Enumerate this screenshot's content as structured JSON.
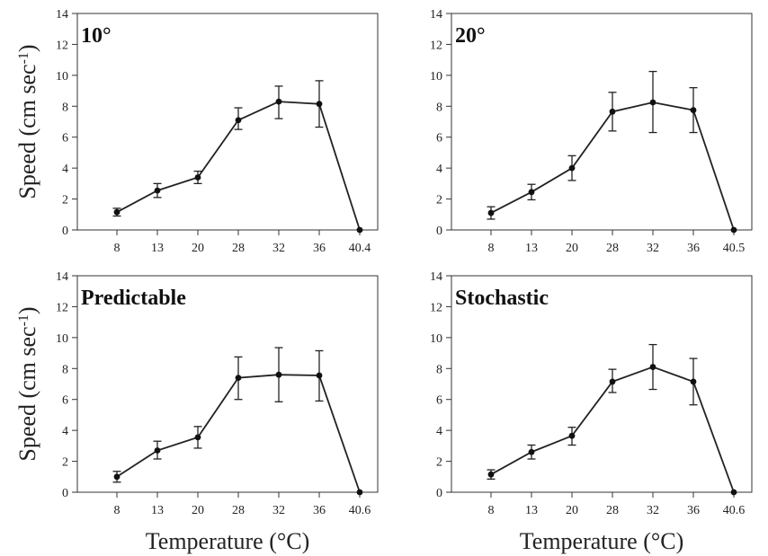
{
  "chart_data": [
    {
      "type": "line",
      "title": "10°",
      "xlabel": "",
      "ylabel": "Speed (cm sec",
      "ylabel_sup": "-1",
      "ylabel_close": ")",
      "categories": [
        "8",
        "13",
        "20",
        "28",
        "32",
        "36",
        "40.4"
      ],
      "values": [
        1.15,
        2.55,
        3.4,
        7.1,
        8.3,
        8.15,
        0
      ],
      "err_low": [
        0.9,
        2.1,
        3.0,
        6.5,
        7.2,
        6.65,
        0
      ],
      "err_high": [
        1.4,
        3.0,
        3.8,
        7.9,
        9.3,
        9.65,
        0
      ],
      "ylim": [
        0,
        14
      ],
      "yticks": [
        0,
        2,
        4,
        6,
        8,
        10,
        12,
        14
      ]
    },
    {
      "type": "line",
      "title": "20°",
      "xlabel": "",
      "ylabel": "",
      "categories": [
        "8",
        "13",
        "20",
        "28",
        "32",
        "36",
        "40.5"
      ],
      "values": [
        1.1,
        2.45,
        4.0,
        7.65,
        8.25,
        7.75,
        0
      ],
      "err_low": [
        0.7,
        1.95,
        3.2,
        6.4,
        6.3,
        6.3,
        0
      ],
      "err_high": [
        1.5,
        2.95,
        4.8,
        8.9,
        10.25,
        9.2,
        0
      ],
      "ylim": [
        0,
        14
      ],
      "yticks": [
        0,
        2,
        4,
        6,
        8,
        10,
        12,
        14
      ]
    },
    {
      "type": "line",
      "title": "Predictable",
      "xlabel": "Temperature (°C)",
      "ylabel": "Speed (cm sec",
      "ylabel_sup": "-1",
      "ylabel_close": ")",
      "categories": [
        "8",
        "13",
        "20",
        "28",
        "32",
        "36",
        "40.6"
      ],
      "values": [
        1.0,
        2.7,
        3.55,
        7.4,
        7.6,
        7.55,
        0
      ],
      "err_low": [
        0.65,
        2.15,
        2.85,
        6.0,
        5.85,
        5.9,
        0
      ],
      "err_high": [
        1.35,
        3.3,
        4.25,
        8.75,
        9.35,
        9.15,
        0
      ],
      "ylim": [
        0,
        14
      ],
      "yticks": [
        0,
        2,
        4,
        6,
        8,
        10,
        12,
        14
      ]
    },
    {
      "type": "line",
      "title": "Stochastic",
      "xlabel": "Temperature (°C)",
      "ylabel": "",
      "categories": [
        "8",
        "13",
        "20",
        "28",
        "32",
        "36",
        "40.6"
      ],
      "values": [
        1.15,
        2.6,
        3.65,
        7.15,
        8.1,
        7.15,
        0
      ],
      "err_low": [
        0.85,
        2.15,
        3.05,
        6.45,
        6.65,
        5.65,
        0
      ],
      "err_high": [
        1.45,
        3.05,
        4.2,
        7.95,
        9.55,
        8.65,
        0
      ],
      "ylim": [
        0,
        14
      ],
      "yticks": [
        0,
        2,
        4,
        6,
        8,
        10,
        12,
        14
      ]
    }
  ]
}
